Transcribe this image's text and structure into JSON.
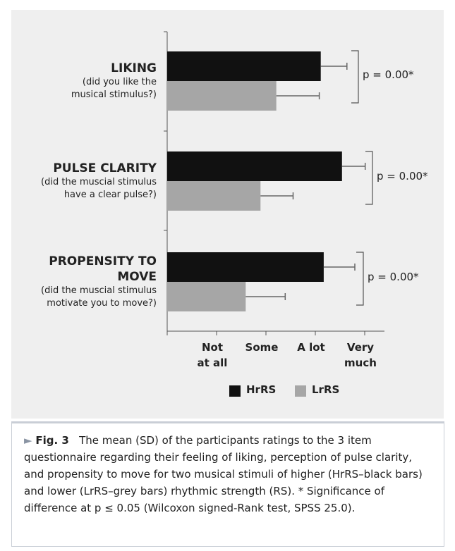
{
  "chart_data": {
    "type": "bar",
    "orientation": "horizontal",
    "categories": [
      "LIKING",
      "PULSE CLARITY",
      "PROPENSITY TO\nMOVE"
    ],
    "category_notes": [
      "(did you like the\nmusical stimulus?)",
      "(did the muscial stimulus\nhave a clear pulse?)",
      "(did the muscial stimulus\nmotivate you to move?)"
    ],
    "series": [
      {
        "name": "HrRS",
        "color": "#111111",
        "values": [
          3.11,
          3.54,
          3.17
        ],
        "errors": [
          0.53,
          0.47,
          0.63
        ]
      },
      {
        "name": "LrRS",
        "color": "#a6a6a6",
        "values": [
          2.21,
          1.89,
          1.59
        ],
        "errors": [
          0.87,
          0.66,
          0.8
        ]
      }
    ],
    "xlim": [
      0,
      4.4
    ],
    "xticks": [
      {
        "value": 1,
        "label": "Not\nat all"
      },
      {
        "value": 2,
        "label": "Some"
      },
      {
        "value": 3,
        "label": "A lot"
      },
      {
        "value": 4,
        "label": "Very\nmuch"
      }
    ],
    "annotations": [
      "p = 0.00*",
      "p = 0.00*",
      "p = 0.00*"
    ],
    "legend": "bottom"
  },
  "caption": {
    "label": "Fig. 3",
    "text": "The mean (SD) of the participants ratings to the 3 item questionnaire regarding their feeling of liking, perception of pulse clarity, and propensity to move for two musical stimuli of higher (HrRS–black bars) and lower (LrRS–grey bars) rhythmic strength (RS).  * Significance of difference at p ≤ 0.05 (Wilcoxon signed-Rank test, SPSS 25.0)."
  }
}
